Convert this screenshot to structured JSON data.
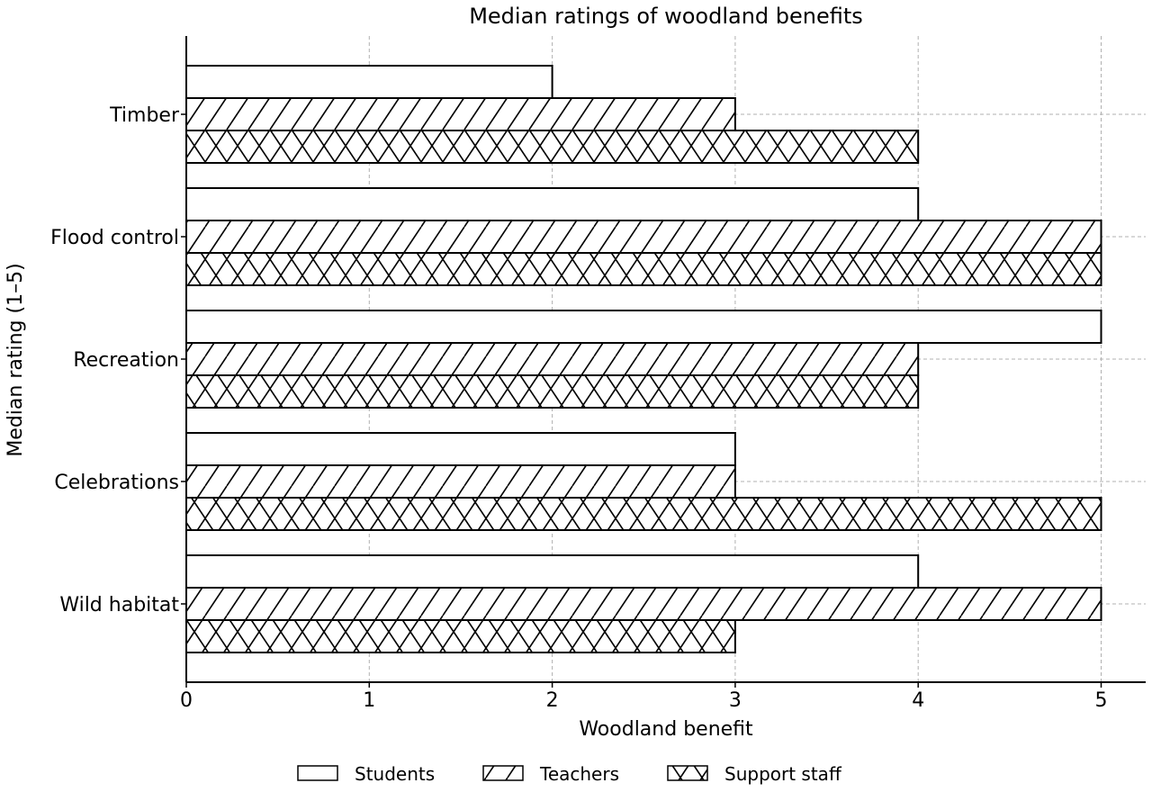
{
  "chart_data": {
    "type": "bar",
    "orientation": "horizontal",
    "title": "Median ratings of woodland benefits",
    "xlabel": "Woodland benefit",
    "ylabel": "Median rating (1–5)",
    "categories": [
      "Timber",
      "Flood control",
      "Recreation",
      "Celebrations",
      "Wild habitat"
    ],
    "series": [
      {
        "name": "Students",
        "values": [
          2,
          4,
          5,
          3,
          4
        ],
        "pattern": "none"
      },
      {
        "name": "Teachers",
        "values": [
          3,
          5,
          4,
          3,
          5
        ],
        "pattern": "diagonal"
      },
      {
        "name": "Support staff",
        "values": [
          4,
          5,
          4,
          5,
          3
        ],
        "pattern": "crosshatch"
      }
    ],
    "xlim": [
      0,
      5.25
    ],
    "xticks": [
      "0",
      "1",
      "2",
      "3",
      "4",
      "5"
    ],
    "grid": true,
    "legend_position": "bottom",
    "colors": {
      "fill": "#ffffff",
      "stroke": "#000000",
      "grid": "#b0b0b0"
    }
  }
}
